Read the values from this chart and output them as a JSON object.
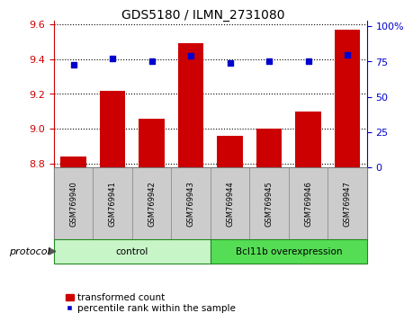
{
  "title": "GDS5180 / ILMN_2731080",
  "samples": [
    "GSM769940",
    "GSM769941",
    "GSM769942",
    "GSM769943",
    "GSM769944",
    "GSM769945",
    "GSM769946",
    "GSM769947"
  ],
  "bar_values": [
    8.84,
    9.22,
    9.06,
    9.49,
    8.96,
    9.0,
    9.1,
    9.57
  ],
  "dot_values": [
    73,
    77,
    75,
    79,
    74,
    75,
    75,
    80
  ],
  "bar_color": "#cc0000",
  "dot_color": "#0000cc",
  "ylim_left": [
    8.78,
    9.62
  ],
  "yticks_left": [
    8.8,
    9.0,
    9.2,
    9.4,
    9.6
  ],
  "ylim_right": [
    0,
    104
  ],
  "yticks_right": [
    0,
    25,
    50,
    75,
    100
  ],
  "yticklabels_right": [
    "0",
    "25",
    "50",
    "75",
    "100%"
  ],
  "groups": [
    {
      "label": "control",
      "indices": [
        0,
        1,
        2,
        3
      ],
      "color": "#c8f5c8"
    },
    {
      "label": "Bcl11b overexpression",
      "indices": [
        4,
        5,
        6,
        7
      ],
      "color": "#55dd55"
    }
  ],
  "protocol_label": "protocol",
  "legend_bar_label": "transformed count",
  "legend_dot_label": "percentile rank within the sample",
  "bar_width": 0.65,
  "background_color": "#ffffff",
  "title_fontsize": 10
}
